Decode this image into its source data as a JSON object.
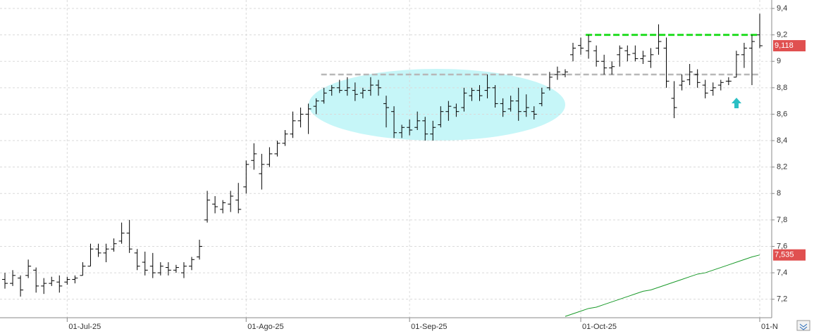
{
  "chart_data": {
    "type": "ohlc",
    "categories": [
      null,
      null,
      null,
      null,
      null,
      null,
      null,
      null,
      "01-Jul-25",
      null,
      null,
      null,
      null,
      null,
      null,
      null,
      null,
      null,
      null,
      null,
      null,
      null,
      null,
      null,
      null,
      null,
      null,
      null,
      null,
      null,
      null,
      "01-Ago-25",
      null,
      null,
      null,
      null,
      null,
      null,
      null,
      null,
      null,
      null,
      null,
      null,
      null,
      null,
      null,
      null,
      null,
      null,
      null,
      null,
      "01-Sep-25",
      null,
      null,
      null,
      null,
      null,
      null,
      null,
      null,
      null,
      null,
      null,
      null,
      null,
      null,
      null,
      null,
      null,
      null,
      null,
      null,
      null,
      "01-Oct-25",
      null,
      null,
      null,
      null,
      null,
      null,
      null,
      null,
      null,
      null,
      null,
      null,
      null,
      null,
      null,
      null,
      null,
      null,
      null,
      null,
      null,
      null,
      "01-N"
    ],
    "color": "#000000",
    "open": [
      7.35,
      7.32,
      7.36,
      7.38,
      7.42,
      7.3,
      7.32,
      7.33,
      7.33,
      7.35,
      7.38,
      7.45,
      7.58,
      7.55,
      7.58,
      7.64,
      7.7,
      7.55,
      7.48,
      7.45,
      7.4,
      7.44,
      7.42,
      7.4,
      7.45,
      7.52,
      7.8,
      7.92,
      7.88,
      7.92,
      7.95,
      8.05,
      8.25,
      8.15,
      8.22,
      8.3,
      8.38,
      8.45,
      8.55,
      8.6,
      8.66,
      8.7,
      8.78,
      8.8,
      8.78,
      8.78,
      8.76,
      8.78,
      8.82,
      8.68,
      8.62,
      8.46,
      8.5,
      8.5,
      8.55,
      8.45,
      8.52,
      8.62,
      8.65,
      8.65,
      8.74,
      8.78,
      8.78,
      8.8,
      8.68,
      8.64,
      8.7,
      8.62,
      8.62,
      8.68,
      8.8,
      8.9,
      8.9,
      9.05,
      9.12,
      9.08,
      9.08,
      9.0,
      8.95,
      9.05,
      9.08,
      9.06,
      9.02,
      9.0,
      9.1,
      9.1,
      8.72,
      8.82,
      8.86,
      8.9,
      8.82,
      8.78,
      8.82,
      8.85,
      8.88,
      9.05,
      9.1,
      9.2
    ],
    "high": [
      7.4,
      7.42,
      7.38,
      7.5,
      7.44,
      7.36,
      7.37,
      7.38,
      7.37,
      7.38,
      7.48,
      7.62,
      7.62,
      7.62,
      7.66,
      7.78,
      7.8,
      7.58,
      7.56,
      7.55,
      7.48,
      7.48,
      7.46,
      7.48,
      7.52,
      7.65,
      8.02,
      7.98,
      7.95,
      8.02,
      8.08,
      8.25,
      8.38,
      8.3,
      8.35,
      8.4,
      8.48,
      8.62,
      8.65,
      8.68,
      8.72,
      8.8,
      8.82,
      8.86,
      8.88,
      8.84,
      8.8,
      8.88,
      8.86,
      8.74,
      8.66,
      8.52,
      8.56,
      8.62,
      8.58,
      8.55,
      8.66,
      8.7,
      8.68,
      8.8,
      8.8,
      8.82,
      8.9,
      8.82,
      8.72,
      8.74,
      8.8,
      8.75,
      8.66,
      8.8,
      8.92,
      8.96,
      8.94,
      9.14,
      9.18,
      9.2,
      9.12,
      9.05,
      9.0,
      9.12,
      9.12,
      9.12,
      9.08,
      9.1,
      9.28,
      9.18,
      8.85,
      8.9,
      8.98,
      8.94,
      8.86,
      8.84,
      8.86,
      8.88,
      9.08,
      9.14,
      9.2,
      9.36
    ],
    "low": [
      7.28,
      7.3,
      7.22,
      7.36,
      7.25,
      7.24,
      7.3,
      7.25,
      7.31,
      7.32,
      7.38,
      7.45,
      7.52,
      7.48,
      7.56,
      7.62,
      7.55,
      7.42,
      7.38,
      7.36,
      7.38,
      7.38,
      7.4,
      7.36,
      7.42,
      7.5,
      7.78,
      7.85,
      7.85,
      7.86,
      7.85,
      8.0,
      8.18,
      8.03,
      8.2,
      8.28,
      8.36,
      8.42,
      8.5,
      8.45,
      8.6,
      8.68,
      8.74,
      8.76,
      8.74,
      8.7,
      8.72,
      8.74,
      8.74,
      8.5,
      8.42,
      8.42,
      8.44,
      8.48,
      8.4,
      8.4,
      8.5,
      8.55,
      8.58,
      8.62,
      8.7,
      8.7,
      8.72,
      8.65,
      8.58,
      8.62,
      8.55,
      8.58,
      8.56,
      8.66,
      8.78,
      8.86,
      8.88,
      9.0,
      9.05,
      9.02,
      8.96,
      8.9,
      8.9,
      8.96,
      9.0,
      9.0,
      8.98,
      8.95,
      9.05,
      8.8,
      8.57,
      8.78,
      8.82,
      8.8,
      8.72,
      8.74,
      8.78,
      8.82,
      8.88,
      8.95,
      8.82,
      9.1
    ],
    "close": [
      7.32,
      7.38,
      7.27,
      7.45,
      7.3,
      7.32,
      7.34,
      7.3,
      7.35,
      7.36,
      7.45,
      7.58,
      7.55,
      7.58,
      7.62,
      7.7,
      7.58,
      7.45,
      7.42,
      7.4,
      7.45,
      7.42,
      7.44,
      7.45,
      7.5,
      7.6,
      7.95,
      7.9,
      7.93,
      7.98,
      7.88,
      8.22,
      8.3,
      8.22,
      8.3,
      8.38,
      8.45,
      8.55,
      8.6,
      8.64,
      8.7,
      8.76,
      8.8,
      8.78,
      8.8,
      8.75,
      8.78,
      8.82,
      8.8,
      8.65,
      8.46,
      8.5,
      8.48,
      8.55,
      8.45,
      8.5,
      8.62,
      8.66,
      8.62,
      8.76,
      8.78,
      8.74,
      8.8,
      8.68,
      8.62,
      8.7,
      8.62,
      8.65,
      8.6,
      8.76,
      8.88,
      8.92,
      8.92,
      9.1,
      9.1,
      9.15,
      9.0,
      8.95,
      8.96,
      9.1,
      9.05,
      9.02,
      9.04,
      9.05,
      9.15,
      8.85,
      8.65,
      8.85,
      8.92,
      8.84,
      8.76,
      8.8,
      8.84,
      8.85,
      9.05,
      9.1,
      9.15,
      9.118
    ],
    "close_label": {
      "value": 9.118,
      "label": "9,118"
    },
    "lines": [
      {
        "color": "#1a9a2a",
        "values": [
          null,
          null,
          null,
          null,
          null,
          null,
          null,
          null,
          null,
          null,
          null,
          null,
          null,
          null,
          null,
          null,
          null,
          null,
          null,
          null,
          null,
          null,
          null,
          null,
          null,
          null,
          null,
          null,
          null,
          null,
          null,
          null,
          null,
          null,
          null,
          null,
          null,
          null,
          null,
          null,
          null,
          null,
          null,
          null,
          null,
          null,
          null,
          null,
          null,
          null,
          null,
          null,
          null,
          null,
          null,
          null,
          null,
          null,
          null,
          null,
          null,
          null,
          null,
          null,
          null,
          null,
          null,
          null,
          null,
          null,
          null,
          null,
          7.07,
          7.09,
          7.11,
          7.13,
          7.14,
          7.16,
          7.18,
          7.2,
          7.22,
          7.24,
          7.26,
          7.27,
          7.29,
          7.31,
          7.33,
          7.35,
          7.37,
          7.39,
          7.4,
          7.42,
          7.44,
          7.46,
          7.48,
          7.5,
          7.52,
          7.535
        ],
        "last_label": {
          "value": 7.535,
          "label": "7,535"
        }
      }
    ],
    "hlines": [
      {
        "value": 9.2,
        "color": "#22dd22",
        "from": 75,
        "to": 97
      },
      {
        "value": 8.9,
        "color": "#b8b8b8",
        "from": 41,
        "to": 97
      }
    ],
    "ylim": [
      7.06,
      9.464
    ],
    "yticks": [
      {
        "value": 7.2,
        "label": "7,2"
      },
      {
        "value": 7.4,
        "label": "7,4"
      },
      {
        "value": 7.6,
        "label": "7,6"
      },
      {
        "value": 7.8,
        "label": "7,8"
      },
      {
        "value": 8,
        "label": "8"
      },
      {
        "value": 8.2,
        "label": "8,2"
      },
      {
        "value": 8.4,
        "label": "8,4"
      },
      {
        "value": 8.6,
        "label": "8,6"
      },
      {
        "value": 8.8,
        "label": "8,8"
      },
      {
        "value": 9,
        "label": "9"
      },
      {
        "value": 9.2,
        "label": "9,2"
      },
      {
        "value": 9.4,
        "label": "9,4"
      }
    ],
    "grid": true
  }
}
